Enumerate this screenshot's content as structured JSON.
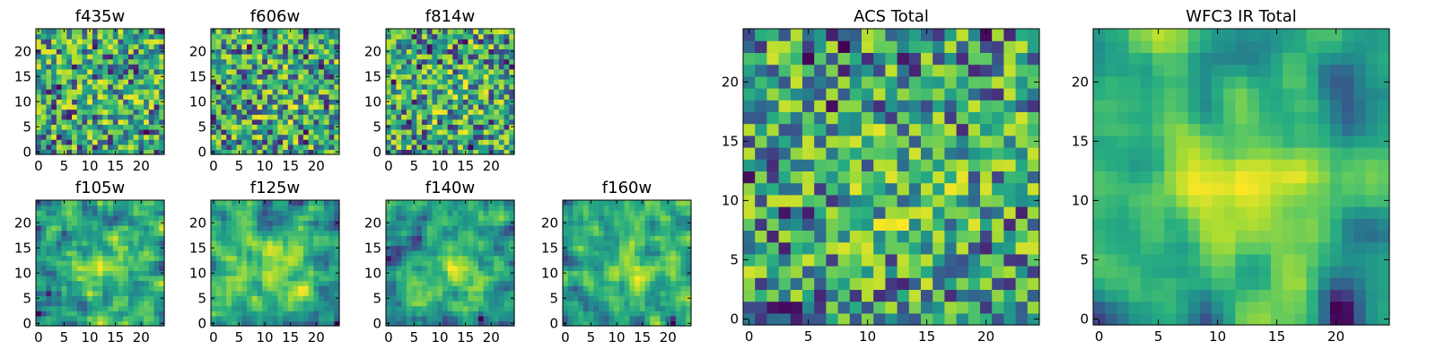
{
  "figure": {
    "colormap": "viridis",
    "colors": [
      "#440154",
      "#3b528b",
      "#21918c",
      "#5ec962",
      "#fde725"
    ]
  },
  "chart_data": [
    {
      "id": "f435w",
      "title": "f435w",
      "type": "heatmap",
      "size": 24,
      "xlim": [
        0,
        24
      ],
      "ylim": [
        0,
        24
      ],
      "xticks": [
        0,
        5,
        10,
        15,
        20
      ],
      "yticks": [
        0,
        5,
        10,
        15,
        20
      ],
      "seed": 11,
      "smooth": 0,
      "sig": 0.3
    },
    {
      "id": "f606w",
      "title": "f606w",
      "type": "heatmap",
      "size": 24,
      "xlim": [
        0,
        24
      ],
      "ylim": [
        0,
        24
      ],
      "xticks": [
        0,
        5,
        10,
        15,
        20
      ],
      "yticks": [
        0,
        5,
        10,
        15,
        20
      ],
      "seed": 23,
      "smooth": 0,
      "sig": 0.32
    },
    {
      "id": "f814w",
      "title": "f814w",
      "type": "heatmap",
      "size": 24,
      "xlim": [
        0,
        24
      ],
      "ylim": [
        0,
        24
      ],
      "xticks": [
        0,
        5,
        10,
        15,
        20
      ],
      "yticks": [
        0,
        5,
        10,
        15,
        20
      ],
      "seed": 37,
      "smooth": 0,
      "sig": 0.34
    },
    {
      "id": "f105w",
      "title": "f105w",
      "type": "heatmap",
      "size": 24,
      "xlim": [
        0,
        24
      ],
      "ylim": [
        0,
        24
      ],
      "xticks": [
        0,
        5,
        10,
        15,
        20
      ],
      "yticks": [
        0,
        5,
        10,
        15,
        20
      ],
      "seed": 41,
      "smooth": 1,
      "sig": 0.9
    },
    {
      "id": "f125w",
      "title": "f125w",
      "type": "heatmap",
      "size": 24,
      "xlim": [
        0,
        24
      ],
      "ylim": [
        0,
        24
      ],
      "xticks": [
        0,
        5,
        10,
        15,
        20
      ],
      "yticks": [
        0,
        5,
        10,
        15,
        20
      ],
      "seed": 53,
      "smooth": 1,
      "sig": 0.9
    },
    {
      "id": "f140w",
      "title": "f140w",
      "type": "heatmap",
      "size": 24,
      "xlim": [
        0,
        24
      ],
      "ylim": [
        0,
        24
      ],
      "xticks": [
        0,
        5,
        10,
        15,
        20
      ],
      "yticks": [
        0,
        5,
        10,
        15,
        20
      ],
      "seed": 67,
      "smooth": 1,
      "sig": 0.9
    },
    {
      "id": "f160w",
      "title": "f160w",
      "type": "heatmap",
      "size": 24,
      "xlim": [
        0,
        24
      ],
      "ylim": [
        0,
        24
      ],
      "xticks": [
        0,
        5,
        10,
        15,
        20
      ],
      "yticks": [
        0,
        5,
        10,
        15,
        20
      ],
      "seed": 79,
      "smooth": 1,
      "sig": 0.9
    },
    {
      "id": "acs_total",
      "title": "ACS Total",
      "type": "heatmap",
      "size": 24,
      "xlim": [
        0,
        24
      ],
      "ylim": [
        0,
        24
      ],
      "xticks": [
        0,
        5,
        10,
        15,
        20
      ],
      "yticks": [
        0,
        5,
        10,
        15,
        20
      ],
      "seed": 97,
      "smooth": 0,
      "sig": 0.55
    },
    {
      "id": "wfc3_total",
      "title": "WFC3 IR Total",
      "type": "heatmap",
      "size": 24,
      "xlim": [
        0,
        24
      ],
      "ylim": [
        0,
        24
      ],
      "xticks": [
        0,
        5,
        10,
        15,
        20
      ],
      "yticks": [
        0,
        5,
        10,
        15,
        20
      ],
      "seed": 131,
      "smooth": 2,
      "sig": 1.2
    }
  ]
}
